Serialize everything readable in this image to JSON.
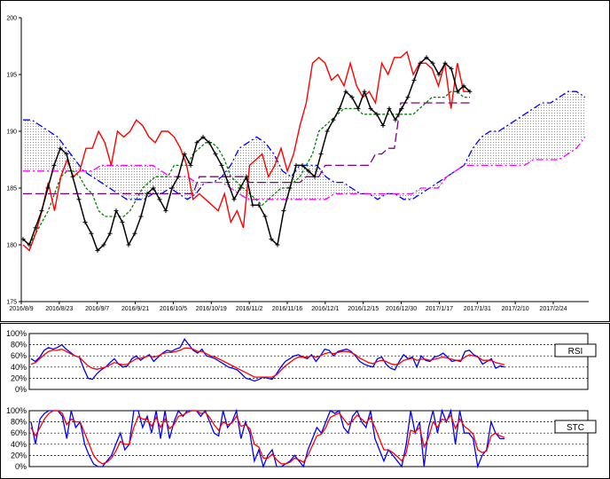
{
  "chart_data": [
    {
      "type": "line",
      "title": "",
      "xlabel": "",
      "ylabel": "",
      "ylim": [
        175,
        200
      ],
      "y_ticks": [
        "175",
        "180",
        "185",
        "190",
        "195",
        "200"
      ],
      "x_tick_labels": [
        "2016/8/9",
        "2016/8/23",
        "2016/9/7",
        "2016/9/21",
        "2016/10/5",
        "2016/10/19",
        "2016/11/2",
        "2016/11/16",
        "2016/12/1",
        "2016/12/15",
        "2016/12/30",
        "2017/1/17",
        "2017/1/31",
        "2017/2/10",
        "2017/2/24"
      ],
      "grid": false,
      "cloud_top": [
        191,
        191,
        190.5,
        190,
        189.5,
        188.5,
        187.5,
        186.5,
        186,
        185.5,
        185,
        184.5,
        184,
        184,
        184,
        184.5,
        184.5,
        185,
        184.5,
        184,
        184.5,
        185.5,
        185.5,
        186,
        187,
        188.5,
        189,
        189.5,
        189,
        188,
        186.5,
        186,
        187,
        187,
        187,
        186,
        185.5,
        185.5,
        185,
        184.5,
        184.5,
        184,
        184.5,
        184.5,
        184,
        184,
        184.5,
        185,
        185.5,
        186,
        186.5,
        187,
        188.5,
        189.5,
        190,
        190,
        190.5,
        191,
        191.5,
        192,
        192.5,
        192.5,
        193,
        193.5,
        193.5,
        193
      ],
      "cloud_bottom": [
        186.5,
        186.5,
        186.5,
        186.5,
        186.5,
        186.5,
        186.5,
        186.5,
        186.5,
        187,
        187,
        187,
        187,
        187,
        187,
        187,
        186.5,
        186,
        186,
        186,
        185.5,
        185.5,
        185.5,
        185.5,
        185,
        184.5,
        184,
        184,
        184,
        184,
        184,
        184,
        184,
        184,
        184,
        184,
        184.5,
        184.5,
        184.5,
        184.5,
        184.5,
        184.5,
        184.5,
        184.5,
        184.5,
        184.5,
        185,
        185,
        185,
        186,
        186.5,
        187,
        187,
        187,
        187,
        187,
        187,
        187,
        187,
        187.5,
        187.5,
        187.5,
        187.5,
        188,
        188.5,
        189.5
      ],
      "series": [
        {
          "values": [
            180.5,
            180,
            181,
            182,
            183,
            184.5,
            186,
            186.5,
            186.5,
            186,
            185,
            184.5,
            183,
            182.5,
            182.5,
            182.5,
            182.5,
            183,
            184,
            185,
            185.5,
            186,
            186,
            186,
            187,
            187,
            187,
            188,
            188.5,
            189,
            189,
            188.5,
            187.5,
            186,
            185.5,
            185,
            184.5,
            184,
            183.5,
            184,
            184.5,
            185,
            185,
            185.5,
            186,
            187,
            188,
            190,
            190.5,
            191,
            191.5,
            192,
            192,
            192,
            191.5,
            191.5,
            191.5,
            191.5,
            191.5,
            191.5,
            191.5,
            191.5,
            191.5,
            192,
            192.5,
            193,
            193,
            193,
            193.5,
            193.5,
            193,
            193
          ]
        },
        {
          "values": [
            184.5,
            184.5,
            184.5,
            184.5,
            184.5,
            184.5,
            184.5,
            184.5,
            184.5,
            184.5,
            184.5,
            184.5,
            184.5,
            184.5,
            184.5,
            184.5,
            184.5,
            184.5,
            184.5,
            184.5,
            184.5,
            184.5,
            184.5,
            184.5,
            184.5,
            184.5,
            184.5,
            184.5,
            186,
            186,
            186,
            186,
            186,
            186,
            186,
            186,
            185.5,
            185.5,
            185.5,
            185.5,
            185.5,
            185.5,
            185.5,
            185.5,
            185.5,
            186,
            186,
            186,
            187,
            187,
            187,
            187,
            187,
            187,
            187,
            187,
            188,
            188,
            188.5,
            188.5,
            192.5,
            192.5,
            192.5,
            192.5,
            192.5,
            192.5,
            192.5,
            192.5,
            192.5,
            192.5,
            192.5,
            192.5
          ]
        },
        {
          "values": [
            180,
            179.5,
            181,
            183,
            185.5,
            183,
            186,
            187.5,
            186,
            186.5,
            188.5,
            188.5,
            190,
            189,
            187,
            190,
            189.5,
            190,
            191,
            190.5,
            189.5,
            189,
            190,
            190,
            189.5,
            188.5,
            187,
            184,
            184.5,
            184,
            183.5,
            183,
            184.5,
            182,
            183,
            181.5,
            187,
            187.5,
            188,
            186,
            187,
            188.5,
            186.5,
            188,
            190.5,
            192.5,
            196,
            196.5,
            196,
            194.5,
            195,
            194,
            196,
            194,
            193,
            193.5,
            192.5,
            196,
            195,
            196.5,
            196.5,
            197,
            195,
            196,
            196,
            195.5,
            194,
            196,
            192,
            196,
            193.5,
            193.5
          ]
        },
        {
          "values": [
            180.5,
            180,
            181.5,
            183,
            185,
            187,
            188.5,
            188,
            186,
            184,
            182,
            181,
            179.5,
            180,
            181,
            183,
            182,
            180,
            181,
            182.5,
            184.5,
            185,
            184,
            183,
            185,
            186,
            188,
            187,
            189,
            189.5,
            189,
            188,
            187,
            185.5,
            184,
            185,
            186,
            183.5,
            183.5,
            182.5,
            180.5,
            180,
            183,
            185,
            187,
            187,
            186.5,
            186,
            188,
            190,
            191,
            192,
            193.5,
            193,
            192,
            193.5,
            192,
            191.5,
            190.5,
            192,
            191,
            192,
            193,
            194.5,
            196,
            196.5,
            196,
            195,
            196,
            195.5,
            193.5,
            194,
            193.5
          ]
        }
      ],
      "series_colors": [
        "#008000",
        "#800080",
        "#ff0000",
        "#000000"
      ],
      "cloud_top_color": "#0000ff",
      "cloud_bottom_color": "#ff00ff"
    },
    {
      "type": "line",
      "ylim": [
        0,
        100
      ],
      "y_ticks": [
        "0%",
        "20%",
        "40%",
        "60%",
        "80%",
        "100%"
      ],
      "legend": "RSI",
      "series": [
        {
          "values": [
            55,
            50,
            58,
            70,
            75,
            72,
            75,
            80,
            72,
            66,
            60,
            58,
            38,
            20,
            18,
            28,
            35,
            40,
            48,
            55,
            45,
            40,
            42,
            55,
            60,
            52,
            58,
            62,
            50,
            58,
            65,
            70,
            68,
            72,
            75,
            90,
            80,
            70,
            65,
            72,
            60,
            58,
            55,
            50,
            45,
            40,
            38,
            35,
            28,
            20,
            18,
            15,
            18,
            22,
            20,
            18,
            28,
            40,
            50,
            55,
            60,
            62,
            58,
            55,
            62,
            50,
            60,
            72,
            70,
            60,
            68,
            70,
            72,
            68,
            60,
            50,
            45,
            42,
            40,
            55,
            58,
            45,
            38,
            35,
            50,
            62,
            55,
            58,
            40,
            60,
            52,
            50,
            58,
            60,
            65,
            58,
            50,
            52,
            50,
            68,
            70,
            62,
            58,
            45,
            50,
            55,
            38,
            42,
            40
          ],
          "color": "#0000ff"
        },
        {
          "values": [
            45,
            48,
            55,
            62,
            68,
            70,
            70,
            72,
            68,
            64,
            60,
            58,
            50,
            42,
            38,
            36,
            38,
            40,
            44,
            48,
            46,
            44,
            45,
            50,
            55,
            56,
            58,
            60,
            58,
            60,
            64,
            66,
            66,
            68,
            70,
            74,
            74,
            72,
            68,
            68,
            64,
            60,
            58,
            54,
            50,
            46,
            42,
            38,
            34,
            30,
            26,
            22,
            22,
            22,
            22,
            22,
            26,
            34,
            42,
            48,
            54,
            58,
            58,
            58,
            60,
            58,
            60,
            64,
            66,
            64,
            66,
            68,
            68,
            66,
            62,
            56,
            52,
            48,
            46,
            50,
            52,
            50,
            46,
            44,
            46,
            52,
            54,
            56,
            52,
            54,
            54,
            52,
            54,
            56,
            58,
            56,
            54,
            52,
            52,
            58,
            62,
            60,
            58,
            52,
            52,
            52,
            48,
            46,
            44
          ],
          "color": "#ff0000"
        }
      ]
    },
    {
      "type": "line",
      "ylim": [
        0,
        100
      ],
      "y_ticks": [
        "0%",
        "20%",
        "40%",
        "60%",
        "80%",
        "100%"
      ],
      "legend": "STC",
      "series": [
        {
          "values": [
            80,
            40,
            85,
            95,
            100,
            100,
            100,
            90,
            50,
            100,
            70,
            80,
            40,
            20,
            5,
            0,
            0,
            10,
            20,
            40,
            60,
            30,
            40,
            100,
            100,
            70,
            90,
            60,
            100,
            50,
            100,
            50,
            80,
            100,
            90,
            100,
            100,
            100,
            90,
            100,
            80,
            60,
            55,
            100,
            70,
            80,
            100,
            50,
            80,
            60,
            10,
            30,
            0,
            20,
            30,
            0,
            0,
            5,
            10,
            20,
            10,
            0,
            30,
            50,
            70,
            60,
            80,
            100,
            95,
            100,
            70,
            60,
            90,
            100,
            80,
            70,
            100,
            50,
            30,
            10,
            30,
            20,
            10,
            0,
            40,
            100,
            60,
            80,
            0,
            70,
            100,
            60,
            100,
            80,
            100,
            40,
            100,
            60,
            60,
            50,
            0,
            20,
            30,
            80,
            60,
            50,
            50
          ],
          "color": "#0000ff"
        },
        {
          "values": [
            70,
            55,
            70,
            85,
            95,
            100,
            100,
            95,
            75,
            85,
            80,
            80,
            60,
            40,
            20,
            10,
            5,
            8,
            15,
            28,
            45,
            40,
            40,
            70,
            90,
            85,
            85,
            72,
            88,
            70,
            85,
            68,
            75,
            90,
            92,
            97,
            100,
            100,
            95,
            97,
            88,
            75,
            65,
            80,
            75,
            78,
            90,
            72,
            75,
            68,
            40,
            35,
            15,
            15,
            22,
            12,
            5,
            5,
            8,
            15,
            12,
            8,
            20,
            38,
            55,
            58,
            70,
            88,
            92,
            96,
            85,
            75,
            82,
            92,
            85,
            78,
            88,
            70,
            50,
            30,
            30,
            25,
            18,
            10,
            25,
            65,
            62,
            70,
            35,
            52,
            80,
            70,
            85,
            82,
            92,
            68,
            85,
            72,
            66,
            58,
            30,
            25,
            28,
            55,
            60,
            55,
            52
          ],
          "color": "#ff0000"
        }
      ]
    }
  ]
}
